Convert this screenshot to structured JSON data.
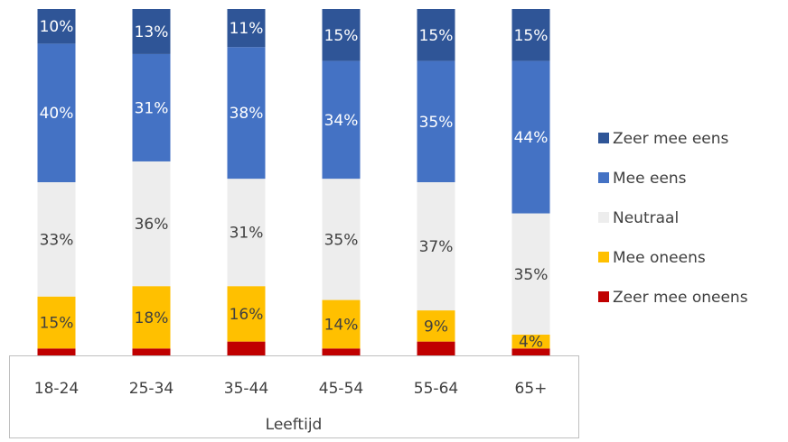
{
  "chart_data": {
    "type": "stacked_bar",
    "categories": [
      "18-24",
      "25-34",
      "35-44",
      "45-54",
      "55-64",
      "65+"
    ],
    "x_label": "Leeftijd",
    "ylim": [
      0,
      100
    ],
    "series": [
      {
        "name": "Zeer mee oneens",
        "color": "#c00000",
        "values": [
          2,
          2,
          4,
          2,
          4,
          2
        ]
      },
      {
        "name": "Mee oneens",
        "color": "#ffc000",
        "values": [
          15,
          18,
          16,
          14,
          9,
          4
        ],
        "value_labels": [
          "15%",
          "18%",
          "16%",
          "14%",
          "9%",
          "4%"
        ]
      },
      {
        "name": "Neutraal",
        "color": "#ededed",
        "values": [
          33,
          36,
          31,
          35,
          37,
          35
        ],
        "value_labels": [
          "33%",
          "36%",
          "31%",
          "35%",
          "37%",
          "35%"
        ]
      },
      {
        "name": "Mee eens",
        "color": "#4472c4",
        "values": [
          40,
          31,
          38,
          34,
          35,
          44
        ],
        "value_labels": [
          "40%",
          "31%",
          "38%",
          "34%",
          "35%",
          "44%"
        ]
      },
      {
        "name": "Zeer mee eens",
        "color": "#2f5597",
        "values": [
          10,
          13,
          11,
          15,
          15,
          15
        ],
        "value_labels": [
          "10%",
          "13%",
          "11%",
          "15%",
          "15%",
          "15%"
        ]
      }
    ],
    "legend": "right"
  }
}
